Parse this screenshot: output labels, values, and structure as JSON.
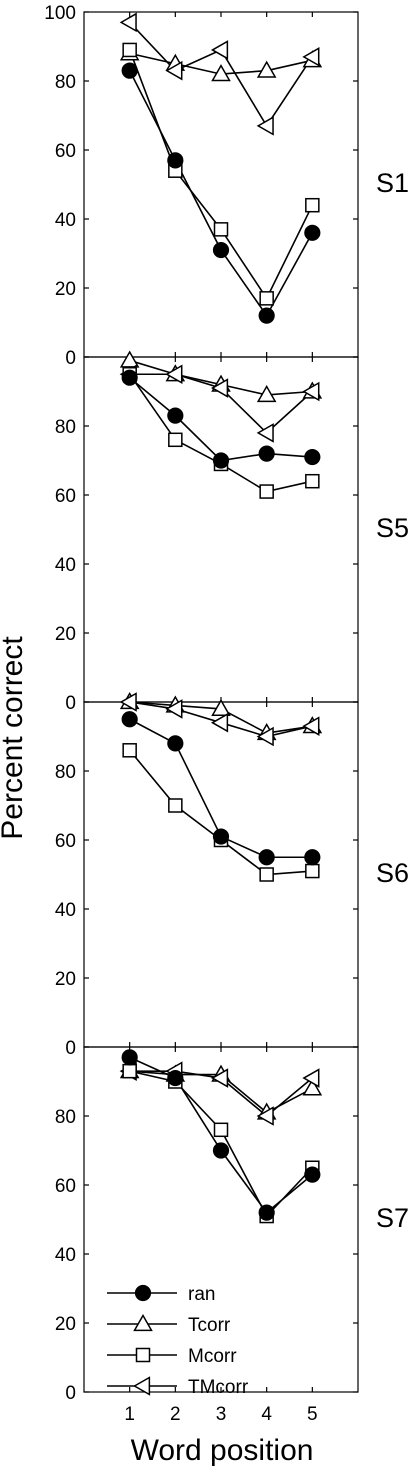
{
  "chart_data": {
    "type": "line",
    "ylabel": "Percent correct",
    "xlabel": "Word position",
    "x": [
      1,
      2,
      3,
      4,
      5
    ],
    "xlim": [
      0,
      6
    ],
    "ylim": [
      0,
      100
    ],
    "yticks": [
      0,
      20,
      40,
      60,
      80,
      100
    ],
    "series_styles": [
      {
        "name": "ran",
        "marker": "filled-circle"
      },
      {
        "name": "Tcorr",
        "marker": "open-triangle-up"
      },
      {
        "name": "Mcorr",
        "marker": "open-square"
      },
      {
        "name": "TMcorr",
        "marker": "open-triangle-left"
      }
    ],
    "legend": {
      "position": "bottom-left",
      "panel": 3
    },
    "panels": [
      {
        "label": "S1",
        "series": [
          {
            "name": "ran",
            "values": [
              83,
              57,
              31,
              12,
              36
            ]
          },
          {
            "name": "Tcorr",
            "values": [
              88,
              85,
              82,
              83,
              86
            ]
          },
          {
            "name": "Mcorr",
            "values": [
              89,
              54,
              37,
              17,
              44
            ]
          },
          {
            "name": "TMcorr",
            "values": [
              97,
              83,
              89,
              67,
              87
            ]
          }
        ]
      },
      {
        "label": "S5",
        "series": [
          {
            "name": "ran",
            "values": [
              94,
              83,
              70,
              72,
              71
            ]
          },
          {
            "name": "Tcorr",
            "values": [
              99,
              95,
              92,
              89,
              90
            ]
          },
          {
            "name": "Mcorr",
            "values": [
              95,
              76,
              69,
              61,
              64
            ]
          },
          {
            "name": "TMcorr",
            "values": [
              95,
              95,
              91,
              78,
              90
            ]
          }
        ]
      },
      {
        "label": "S6",
        "series": [
          {
            "name": "ran",
            "values": [
              95,
              88,
              61,
              55,
              55
            ]
          },
          {
            "name": "Tcorr",
            "values": [
              100,
              99,
              98,
              91,
              93
            ]
          },
          {
            "name": "Mcorr",
            "values": [
              86,
              70,
              60,
              50,
              51
            ]
          },
          {
            "name": "TMcorr",
            "values": [
              100,
              98,
              94,
              90,
              93
            ]
          }
        ]
      },
      {
        "label": "S7",
        "series": [
          {
            "name": "ran",
            "values": [
              97,
              91,
              70,
              52,
              63
            ]
          },
          {
            "name": "Tcorr",
            "values": [
              93,
              92,
              92,
              81,
              88
            ]
          },
          {
            "name": "Mcorr",
            "values": [
              93,
              90,
              76,
              51,
              65
            ]
          },
          {
            "name": "TMcorr",
            "values": [
              93,
              93,
              91,
              80,
              91
            ]
          }
        ]
      }
    ]
  }
}
